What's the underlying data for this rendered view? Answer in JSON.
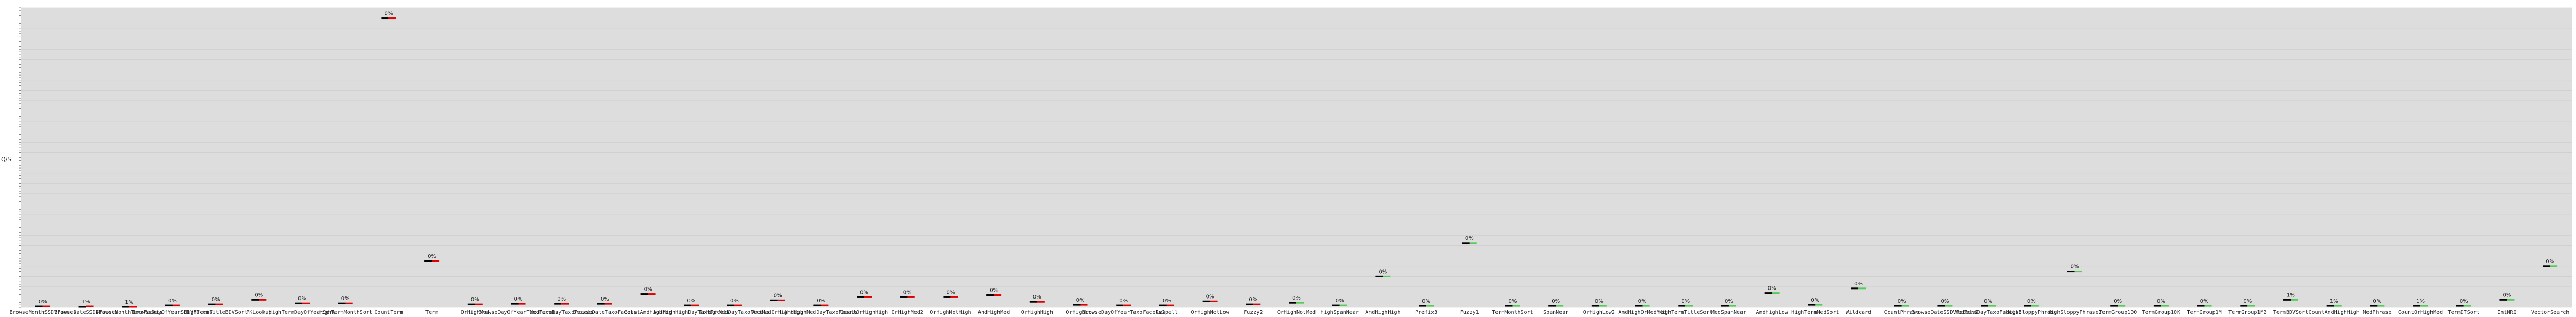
{
  "chart_data": {
    "type": "bar",
    "title": "",
    "xlabel": "",
    "ylabel": "Q/S",
    "grid": true,
    "series": [
      {
        "color": "#000000"
      },
      {
        "color": "#e00000"
      },
      {
        "color": "#55cc55"
      }
    ],
    "categories": [
      {
        "label": "BrowseMonthSSDVFacets",
        "pct": "0%",
        "values": [
          2,
          2
        ]
      },
      {
        "label": "BrowseDateSSDVFacets",
        "pct": "1%",
        "values": [
          1,
          2
        ]
      },
      {
        "label": "BrowseMonthTaxoFacets",
        "pct": "1%",
        "values": [
          1,
          1
        ]
      },
      {
        "label": "BrowseDayOfYearSSDVFacets",
        "pct": "0%",
        "values": [
          4,
          4
        ]
      },
      {
        "label": "HighTermTitleBDVSort",
        "pct": "0%",
        "values": [
          6,
          6
        ]
      },
      {
        "label": "PKLookup",
        "pct": "0%",
        "values": [
          15,
          15
        ]
      },
      {
        "label": "HighTermDayOfYearSort",
        "pct": "0%",
        "values": [
          8,
          8
        ]
      },
      {
        "label": "HighTermMonthSort",
        "pct": "0%",
        "values": [
          8,
          8
        ]
      },
      {
        "label": "CountTerm",
        "pct": "0%",
        "values": [
          560,
          560
        ]
      },
      {
        "label": "Term",
        "pct": "0%",
        "values": [
          90,
          90
        ]
      },
      {
        "label": "OrHighMed",
        "pct": "0%",
        "values": [
          6,
          6
        ]
      },
      {
        "label": "BrowseDayOfYearTaxoFacets",
        "pct": "0%",
        "values": [
          7,
          7
        ]
      },
      {
        "label": "MedTermDayTaxoFacets",
        "pct": "0%",
        "values": [
          7,
          7
        ]
      },
      {
        "label": "BrowseDateTaxoFacets",
        "pct": "0%",
        "values": [
          7,
          7
        ]
      },
      {
        "label": "CountAndHighMed",
        "pct": "0%",
        "values": [
          26,
          26
        ]
      },
      {
        "label": "AndHighHighDayTaxoFacets",
        "pct": "0%",
        "values": [
          4,
          4
        ]
      },
      {
        "label": "OrHighMedDayTaxoFacets",
        "pct": "0%",
        "values": [
          4,
          4
        ]
      },
      {
        "label": "AndMedOrHighHigh",
        "pct": "0%",
        "values": [
          14,
          14
        ]
      },
      {
        "label": "AndHighMedDayTaxoFacets",
        "pct": "0%",
        "values": [
          4,
          4
        ]
      },
      {
        "label": "CountOrHighHigh",
        "pct": "0%",
        "values": [
          20,
          20
        ]
      },
      {
        "label": "OrHighMed2",
        "pct": "0%",
        "values": [
          20,
          20
        ]
      },
      {
        "label": "OrHighNotHigh",
        "pct": "0%",
        "values": [
          20,
          20
        ]
      },
      {
        "label": "AndHighMed",
        "pct": "0%",
        "values": [
          24,
          24
        ]
      },
      {
        "label": "OrHighHigh",
        "pct": "0%",
        "values": [
          11,
          11
        ]
      },
      {
        "label": "OrHighLow",
        "pct": "0%",
        "values": [
          5,
          5
        ]
      },
      {
        "label": "BrowseDayOfYearTaxoFacets2",
        "pct": "0%",
        "values": [
          4,
          4
        ]
      },
      {
        "label": "Respell",
        "pct": "0%",
        "values": [
          4,
          4
        ]
      },
      {
        "label": "OrHighNotLow",
        "pct": "0%",
        "values": [
          12,
          12
        ]
      },
      {
        "label": "Fuzzy2",
        "pct": "0%",
        "values": [
          6,
          6
        ]
      },
      {
        "label": "OrHighNotMed",
        "pct": "0%",
        "values": [
          9,
          9
        ]
      },
      {
        "label": "HighSpanNear",
        "pct": "0%",
        "values": [
          4,
          4
        ]
      },
      {
        "label": "AndHighHigh",
        "pct": "0%",
        "values": [
          60,
          60
        ]
      },
      {
        "label": "Prefix3",
        "pct": "0%",
        "values": [
          3,
          3
        ]
      },
      {
        "label": "Fuzzy1",
        "pct": "0%",
        "values": [
          125,
          125
        ]
      },
      {
        "label": "TermMonthSort",
        "pct": "0%",
        "values": [
          3,
          3
        ]
      },
      {
        "label": "SpanNear",
        "pct": "0%",
        "values": [
          3,
          3
        ]
      },
      {
        "label": "OrHighLow2",
        "pct": "0%",
        "values": [
          3,
          3
        ]
      },
      {
        "label": "AndHighOrMedMed",
        "pct": "0%",
        "values": [
          3,
          3
        ]
      },
      {
        "label": "HighTermTitleSort",
        "pct": "0%",
        "values": [
          3,
          3
        ]
      },
      {
        "label": "MedSpanNear",
        "pct": "0%",
        "values": [
          3,
          3
        ]
      },
      {
        "label": "AndHighLow",
        "pct": "0%",
        "values": [
          28,
          28
        ]
      },
      {
        "label": "HighTermMedSort",
        "pct": "0%",
        "values": [
          5,
          5
        ]
      },
      {
        "label": "Wildcard",
        "pct": "0%",
        "values": [
          37,
          37
        ]
      },
      {
        "label": "CountPhrase",
        "pct": "0%",
        "values": [
          3,
          3
        ]
      },
      {
        "label": "BrowseDateSSDVFacets2",
        "pct": "0%",
        "values": [
          3,
          3
        ]
      },
      {
        "label": "MedTermDayTaxoFacets2",
        "pct": "0%",
        "values": [
          3,
          3
        ]
      },
      {
        "label": "HighSloppyPhrase",
        "pct": "0%",
        "values": [
          3,
          3
        ]
      },
      {
        "label": "HighSloppyPhrase2",
        "pct": "0%",
        "values": [
          70,
          70
        ]
      },
      {
        "label": "TermGroup100",
        "pct": "0%",
        "values": [
          3,
          3
        ]
      },
      {
        "label": "TermGroup10K",
        "pct": "0%",
        "values": [
          3,
          3
        ]
      },
      {
        "label": "TermGroup1M",
        "pct": "0%",
        "values": [
          3,
          3
        ]
      },
      {
        "label": "TermGroup1M2",
        "pct": "0%",
        "values": [
          3,
          3
        ]
      },
      {
        "label": "TermBDVSort",
        "pct": "1%",
        "values": [
          15,
          15
        ]
      },
      {
        "label": "CountAndHighHigh",
        "pct": "1%",
        "values": [
          3,
          3
        ]
      },
      {
        "label": "MedPhrase",
        "pct": "0%",
        "values": [
          3,
          3
        ]
      },
      {
        "label": "CountOrHighMed",
        "pct": "1%",
        "values": [
          3,
          3
        ]
      },
      {
        "label": "TermDTSort",
        "pct": "0%",
        "values": [
          3,
          3
        ]
      },
      {
        "label": "IntNRQ",
        "pct": "0%",
        "values": [
          15,
          15
        ]
      },
      {
        "label": "VectorSearch",
        "pct": "0%",
        "values": [
          80,
          80
        ]
      }
    ]
  }
}
